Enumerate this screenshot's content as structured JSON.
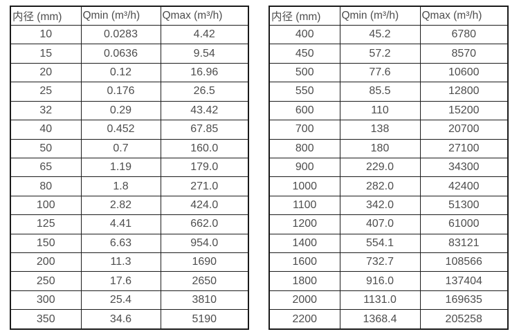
{
  "colors": {
    "background": "#ffffff",
    "text": "#4d4d4d",
    "border": "#1a1a1a"
  },
  "tables": [
    {
      "name": "flow-rate-table-left",
      "headers": [
        "内径 (mm)",
        "Qmin (m³/h)",
        "Qmax (m³/h)"
      ],
      "rows": [
        [
          "10",
          "0.0283",
          "4.42"
        ],
        [
          "15",
          "0.0636",
          "9.54"
        ],
        [
          "20",
          "0.12",
          "16.96"
        ],
        [
          "25",
          "0.176",
          "26.5"
        ],
        [
          "32",
          "0.29",
          "43.42"
        ],
        [
          "40",
          "0.452",
          "67.85"
        ],
        [
          "50",
          "0.7",
          "160.0"
        ],
        [
          "65",
          "1.19",
          "179.0"
        ],
        [
          "80",
          "1.8",
          "271.0"
        ],
        [
          "100",
          "2.82",
          "424.0"
        ],
        [
          "125",
          "4.41",
          "662.0"
        ],
        [
          "150",
          "6.63",
          "954.0"
        ],
        [
          "200",
          "11.3",
          "1690"
        ],
        [
          "250",
          "17.6",
          "2650"
        ],
        [
          "300",
          "25.4",
          "3810"
        ],
        [
          "350",
          "34.6",
          "5190"
        ]
      ]
    },
    {
      "name": "flow-rate-table-right",
      "headers": [
        "内径 (mm)",
        "Qmin (m³/h)",
        "Qmax (m³/h)"
      ],
      "rows": [
        [
          "400",
          "45.2",
          "6780"
        ],
        [
          "450",
          "57.2",
          "8570"
        ],
        [
          "500",
          "77.6",
          "10600"
        ],
        [
          "550",
          "85.5",
          "12800"
        ],
        [
          "600",
          "110",
          "15200"
        ],
        [
          "700",
          "138",
          "20700"
        ],
        [
          "800",
          "180",
          "27100"
        ],
        [
          "900",
          "229.0",
          "34300"
        ],
        [
          "1000",
          "282.0",
          "42400"
        ],
        [
          "1100",
          "342.0",
          "51300"
        ],
        [
          "1200",
          "407.0",
          "61000"
        ],
        [
          "1400",
          "554.1",
          "83121"
        ],
        [
          "1600",
          "732.7",
          "108566"
        ],
        [
          "1800",
          "916.0",
          "137404"
        ],
        [
          "2000",
          "1131.0",
          "169635"
        ],
        [
          "2200",
          "1368.4",
          "205258"
        ]
      ]
    }
  ]
}
